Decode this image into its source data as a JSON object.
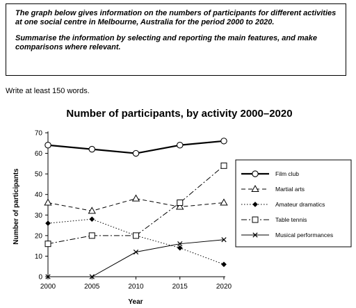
{
  "task": {
    "paragraph1": "The graph below gives information on the numbers of participants for different activities at one social centre in Melbourne, Australia for the period 2000 to 2020.",
    "paragraph2": "Summarise the information by selecting and reporting the main features, and make comparisons where relevant."
  },
  "instruction": "Write at least 150 words.",
  "chart_data": {
    "type": "line",
    "title": "Number of participants, by activity 2000–2020",
    "xlabel": "Year",
    "ylabel": "Number of participants",
    "x": [
      2000,
      2005,
      2010,
      2015,
      2020
    ],
    "ylim": [
      0,
      70
    ],
    "yticks": [
      0,
      10,
      20,
      30,
      40,
      50,
      60,
      70
    ],
    "grid": false,
    "legend_position": "right",
    "series": [
      {
        "name": "Film club",
        "values": [
          64,
          62,
          60,
          64,
          66
        ],
        "marker": "circle",
        "dash": "solid",
        "bold": true
      },
      {
        "name": "Martial arts",
        "values": [
          36,
          32,
          38,
          34,
          36
        ],
        "marker": "triangle",
        "dash": "dashed",
        "bold": false
      },
      {
        "name": "Amateur dramatics",
        "values": [
          26,
          28,
          20,
          14,
          6
        ],
        "marker": "diamond",
        "dash": "dotted",
        "bold": false
      },
      {
        "name": "Table tennis",
        "values": [
          16,
          20,
          20,
          36,
          54
        ],
        "marker": "square",
        "dash": "dashdot",
        "bold": false
      },
      {
        "name": "Musical performances",
        "values": [
          0,
          0,
          12,
          16,
          18
        ],
        "marker": "cross",
        "dash": "solid",
        "bold": false
      }
    ]
  }
}
